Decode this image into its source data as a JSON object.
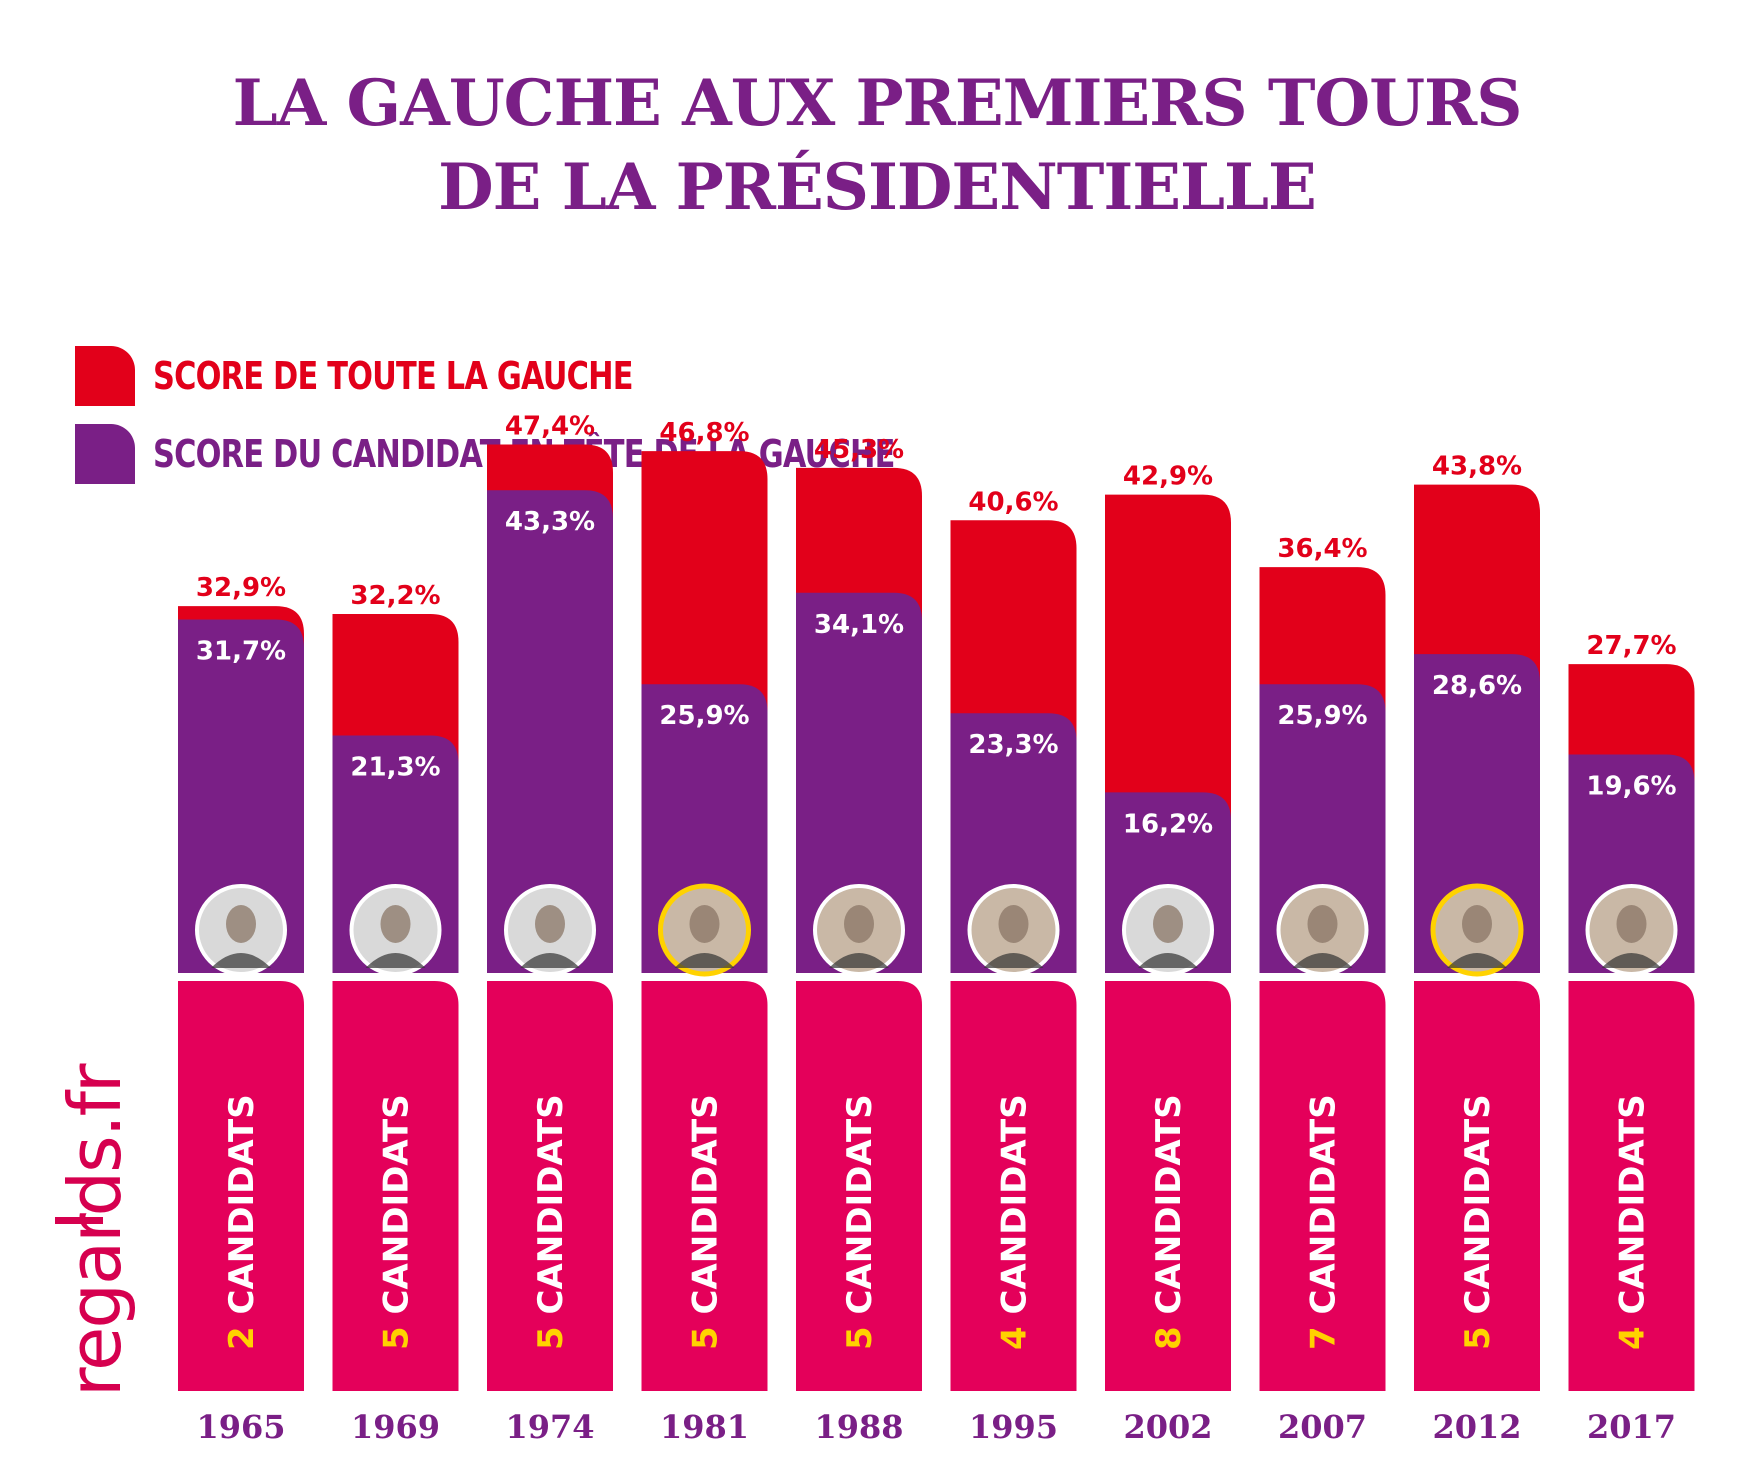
{
  "title": {
    "line1": "LA GAUCHE AUX PREMIERS TOURS",
    "line2": "DE LA PRÉSIDENTIELLE"
  },
  "legend": [
    {
      "label": "SCORE DE TOUTE LA GAUCHE",
      "color": "#e2001a"
    },
    {
      "label": "SCORE DU CANDIDAT EN TÊTE DE LA GAUCHE",
      "color": "#7a1f86"
    }
  ],
  "brand": "regards.fr",
  "colors": {
    "total": "#e2001a",
    "leader": "#7a1f86",
    "candidates_bar": "#e4005a",
    "title": "#7a1f86",
    "count_number": "#ffd200",
    "count_word": "#ffffff",
    "photo_highlight": "#ffd200"
  },
  "chart_data": {
    "type": "bar",
    "categories": [
      "1965",
      "1969",
      "1974",
      "1981",
      "1988",
      "1995",
      "2002",
      "2007",
      "2012",
      "2017"
    ],
    "series": [
      {
        "name": "SCORE DE TOUTE LA GAUCHE",
        "values": [
          32.9,
          32.2,
          47.4,
          46.8,
          45.3,
          40.6,
          42.9,
          36.4,
          43.8,
          27.7
        ],
        "labels": [
          "32,9%",
          "32,2%",
          "47,4%",
          "46,8%",
          "45,3%",
          "40,6%",
          "42,9%",
          "36,4%",
          "43,8%",
          "27,7%"
        ]
      },
      {
        "name": "SCORE DU CANDIDAT EN TÊTE DE LA GAUCHE",
        "values": [
          31.7,
          21.3,
          43.3,
          25.9,
          34.1,
          23.3,
          16.2,
          25.9,
          28.6,
          19.6
        ],
        "labels": [
          "31,7%",
          "21,3%",
          "43,3%",
          "25,9%",
          "34,1%",
          "23,3%",
          "16,2%",
          "25,9%",
          "28,6%",
          "19,6%"
        ]
      }
    ],
    "candidate_counts": [
      2,
      5,
      5,
      5,
      5,
      4,
      8,
      7,
      5,
      4
    ],
    "candidate_word": "CANDIDATS",
    "winner_highlight": [
      false,
      false,
      false,
      true,
      false,
      false,
      false,
      false,
      true,
      false
    ],
    "ylim": [
      0,
      50
    ],
    "xlabel": "",
    "ylabel": ""
  }
}
